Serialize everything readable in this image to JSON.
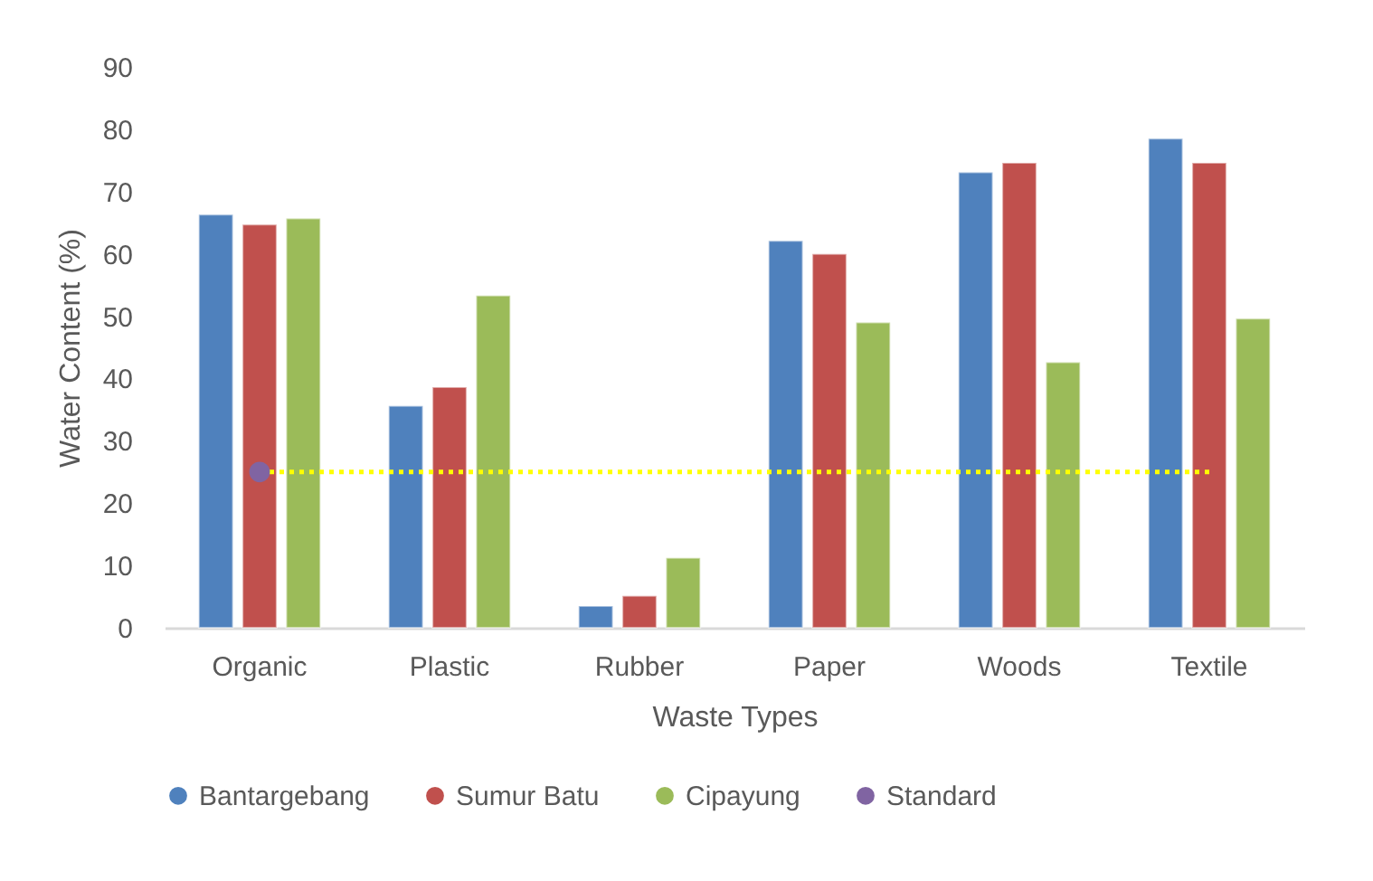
{
  "chart_data": {
    "type": "bar",
    "xlabel": "Waste Types",
    "ylabel": "Water Content (%)",
    "categories": [
      "Organic",
      "Plastic",
      "Rubber",
      "Paper",
      "Woods",
      "Textile"
    ],
    "series": [
      {
        "name": "Bantargebang",
        "color": "#4f81bd",
        "values": [
          66.3,
          35.6,
          3.5,
          62.1,
          73.1,
          78.5
        ]
      },
      {
        "name": "Sumur Batu",
        "color": "#c0504d",
        "values": [
          64.7,
          38.6,
          5.1,
          60,
          74.6,
          74.6
        ]
      },
      {
        "name": "Cipayung",
        "color": "#9bbb59",
        "values": [
          65.7,
          53.3,
          11.2,
          49,
          42.6,
          49.6
        ]
      },
      {
        "name": "Standard",
        "type": "scatter",
        "color": "#8064a2",
        "x": [
          "Organic"
        ],
        "values": [
          25
        ]
      }
    ],
    "ref_lines": [
      {
        "axis": "y",
        "value": 25,
        "color": "#ffff00",
        "line_style": "dotted"
      }
    ],
    "ylim": [
      0,
      90
    ],
    "yticks": [
      0,
      10,
      20,
      30,
      40,
      50,
      60,
      70,
      80,
      90
    ],
    "legend": "bottom",
    "marker": "circle"
  }
}
